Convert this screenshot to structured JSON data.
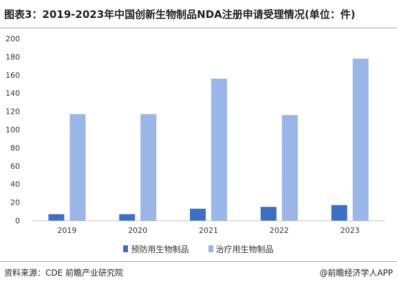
{
  "header": {
    "title": "图表3：2019-2023年中国创新生物制品NDA注册申请受理情况(单位：件)"
  },
  "footer": {
    "source": "资料来源：CDE 前瞻产业研究院",
    "credit": "@前瞻经济学人APP"
  },
  "colors": {
    "preventive": "#3a70c6",
    "therapeutic": "#9ab5e7"
  },
  "chart_data": {
    "type": "bar",
    "title": "图表3：2019-2023年中国创新生物制品NDA注册申请受理情况(单位：件)",
    "xlabel": "",
    "ylabel": "",
    "categories": [
      "2019",
      "2020",
      "2021",
      "2022",
      "2023"
    ],
    "series": [
      {
        "name": "预防用生物制品",
        "values": [
          7,
          7,
          13,
          15,
          17
        ]
      },
      {
        "name": "治疗用生物制品",
        "values": [
          117,
          117,
          156,
          116,
          178
        ]
      }
    ],
    "ylim": [
      0,
      200
    ],
    "yticks": [
      0,
      20,
      40,
      60,
      80,
      100,
      120,
      140,
      160,
      180,
      200
    ],
    "grid": false,
    "legend_position": "bottom"
  }
}
